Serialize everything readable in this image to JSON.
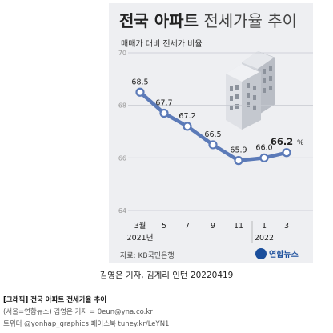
{
  "chart_data": {
    "type": "line",
    "title_bold": "전국 아파트",
    "title_light": "전세가율 추이",
    "subtitle": "매매가 대비 전세가 비율",
    "categories": [
      "3월",
      "5",
      "7",
      "9",
      "11",
      "1",
      "3"
    ],
    "year_labels": [
      "2021년",
      "2022"
    ],
    "values": [
      68.5,
      67.7,
      67.2,
      66.5,
      65.9,
      66.0,
      66.2
    ],
    "value_labels": [
      "68.5",
      "67.7",
      "67.2",
      "66.5",
      "65.9",
      "66.0",
      "66.2"
    ],
    "last_unit": "%",
    "yticks": [
      "70",
      "68",
      "66",
      "64"
    ],
    "ylim": [
      64,
      70
    ],
    "grid": true,
    "source": "자료: KB국민은행",
    "logo_text": "연합뉴스",
    "colors": {
      "line": "#5b7ab8",
      "background": "#eeeff2",
      "grid": "#c6c9d0",
      "text": "#333333"
    }
  },
  "credit": "김영은 기자, 김계리 인턴  20220419",
  "footer": {
    "line1": "[그래픽] 전국 아파트 전세가율 추이",
    "line2": "(서울=연합뉴스) 김영은 기자 = 0eun@yna.co.kr",
    "line3": "트위터 @yonhap_graphics  페이스북 tuney.kr/LeYN1"
  }
}
